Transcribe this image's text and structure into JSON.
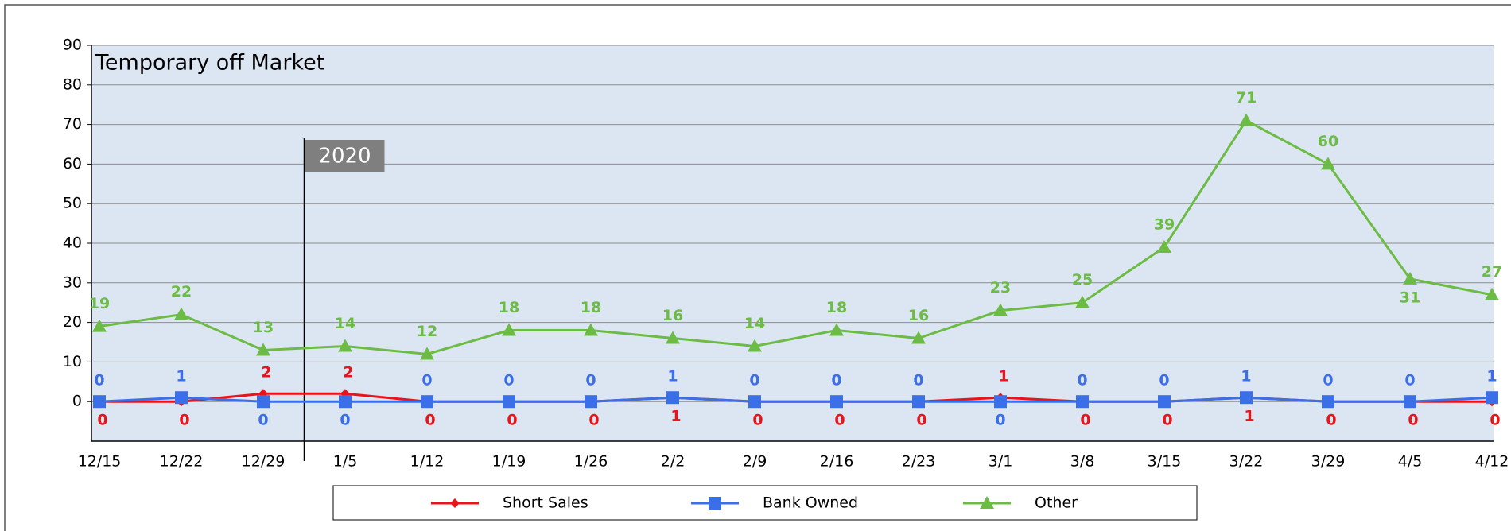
{
  "chart_data": {
    "type": "line",
    "title": "Temporary off Market",
    "categories": [
      "12/15",
      "12/22",
      "12/29",
      "1/5",
      "1/12",
      "1/19",
      "1/26",
      "2/2",
      "2/9",
      "2/16",
      "2/23",
      "3/1",
      "3/8",
      "3/15",
      "3/22",
      "3/29",
      "4/5",
      "4/12"
    ],
    "series": [
      {
        "name": "Short Sales",
        "color": "#e8141b",
        "values": [
          0,
          0,
          2,
          2,
          0,
          0,
          0,
          1,
          0,
          0,
          0,
          1,
          0,
          0,
          1,
          0,
          0,
          0
        ]
      },
      {
        "name": "Bank Owned",
        "color": "#3a6fe8",
        "values": [
          0,
          1,
          0,
          0,
          0,
          0,
          0,
          1,
          0,
          0,
          0,
          0,
          0,
          0,
          1,
          0,
          0,
          1
        ]
      },
      {
        "name": "Other",
        "color": "#6cbb45",
        "values": [
          19,
          22,
          13,
          14,
          12,
          18,
          18,
          16,
          14,
          18,
          16,
          23,
          25,
          39,
          71,
          60,
          31,
          27
        ]
      }
    ],
    "ylim": [
      -10,
      90
    ],
    "yticks": [
      0,
      10,
      20,
      30,
      40,
      50,
      60,
      70,
      80,
      90
    ],
    "grid": true,
    "annotation": "2020",
    "legend": "bottom"
  }
}
